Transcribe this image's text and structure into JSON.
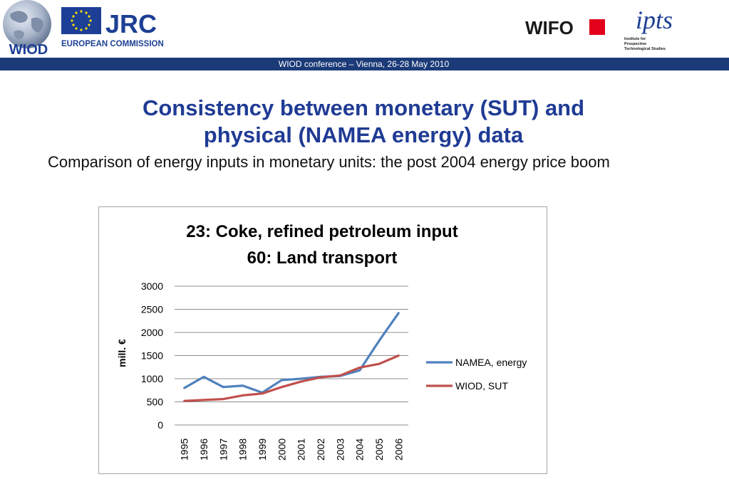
{
  "header": {
    "logos": {
      "wiod": "WIOD",
      "jrc": "JRC",
      "jrc_sub": "EUROPEAN COMMISSION",
      "wifo": "WIFO",
      "ipts": "ipts",
      "ipts_sub": [
        "Institute for",
        "Prospective",
        "Technological Studies"
      ]
    },
    "conference_text": "WIOD conference – Vienna, 26-28 May 2010"
  },
  "slide": {
    "title_line1": "Consistency between monetary (SUT) and",
    "title_line2": "physical (NAMEA energy) data",
    "subtitle": "Comparison of energy inputs in monetary units: the post 2004 energy price boom"
  },
  "colors": {
    "bar": "#1b3a78",
    "title": "#1f3b94",
    "namea": "#4f81bd",
    "wiod": "#c0504d",
    "eu_blue": "#1d3f95",
    "wifo_red": "#e2001a"
  },
  "chart_data": {
    "type": "line",
    "title_lines": [
      "23: Coke, refined petroleum input",
      "60: Land transport"
    ],
    "xlabel": "",
    "ylabel": "mill. €",
    "ylim": [
      0,
      3000
    ],
    "yticks": [
      0,
      500,
      1000,
      1500,
      2000,
      2500,
      3000
    ],
    "categories": [
      "1995",
      "1996",
      "1997",
      "1998",
      "1999",
      "2000",
      "2001",
      "2002",
      "2003",
      "2004",
      "2005",
      "2006"
    ],
    "series": [
      {
        "name": "NAMEA, energy",
        "color": "#4f81bd",
        "values": [
          800,
          1040,
          820,
          850,
          700,
          970,
          1000,
          1040,
          1060,
          1180,
          1820,
          2420
        ]
      },
      {
        "name": "WIOD, SUT",
        "color": "#c0504d",
        "values": [
          520,
          540,
          560,
          640,
          680,
          820,
          940,
          1030,
          1070,
          1240,
          1320,
          1500
        ]
      }
    ],
    "grid": true,
    "legend_position": "right"
  }
}
